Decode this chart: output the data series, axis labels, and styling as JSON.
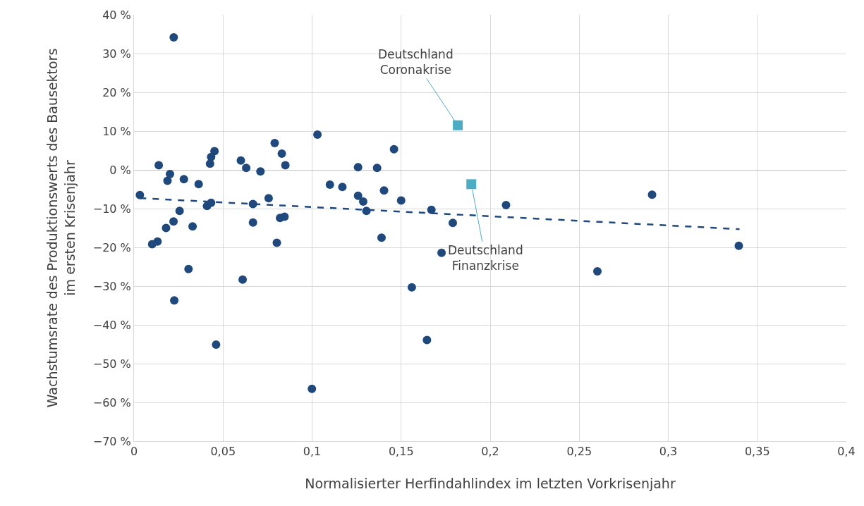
{
  "chart_data": {
    "type": "scatter",
    "xlabel": "Normalisierter Herfindahlindex im letzten Vorkrisenjahr",
    "ylabel": "Wachstumsrate des Produktionswerts des Bausektors\nim ersten Krisenjahr",
    "xlim": [
      0,
      0.4
    ],
    "ylim": [
      -70,
      40
    ],
    "xticks": [
      0,
      {
        "value": 0.05,
        "label": "0,05"
      },
      {
        "value": 0.1,
        "label": "0,1"
      },
      {
        "value": 0.15,
        "label": "0,15"
      },
      {
        "value": 0.2,
        "label": "0,2"
      },
      {
        "value": 0.25,
        "label": "0,25"
      },
      {
        "value": 0.3,
        "label": "0,3"
      },
      {
        "value": 0.35,
        "label": "0,35"
      },
      {
        "value": 0.4,
        "label": "0,4"
      }
    ],
    "yticks": [
      {
        "value": 40,
        "label": "40 %"
      },
      {
        "value": 30,
        "label": "30 %"
      },
      {
        "value": 20,
        "label": "20 %"
      },
      {
        "value": 10,
        "label": "10 %"
      },
      {
        "value": 0,
        "label": "0 %"
      },
      {
        "value": -10,
        "label": "−10 %"
      },
      {
        "value": -20,
        "label": "−20 %"
      },
      {
        "value": -30,
        "label": "−30 %"
      },
      {
        "value": -40,
        "label": "−40 %"
      },
      {
        "value": -50,
        "label": "−50 %"
      },
      {
        "value": -60,
        "label": "−60 %"
      },
      {
        "value": -70,
        "label": "−70 %"
      }
    ],
    "grid": true,
    "series": [
      {
        "type": "scatter",
        "marker": "circle",
        "color": "#1f497d",
        "x": [
          0.0223,
          0.0139,
          0.0202,
          0.0188,
          0.028,
          0.0363,
          0.0033,
          0.0452,
          0.0433,
          0.0427,
          0.06,
          0.063,
          0.071,
          0.079,
          0.083,
          0.085,
          0.103,
          0.11,
          0.117,
          0.041,
          0.0433,
          0.0668,
          0.0756,
          0.0256,
          0.0222,
          0.018,
          0.0329,
          0.0668,
          0.082,
          0.0845,
          0.0102,
          0.0132,
          0.0306,
          0.061,
          0.0226,
          0.0461,
          0.0999,
          0.0802,
          0.1258,
          0.1365,
          0.146,
          0.1258,
          0.1287,
          0.1305,
          0.1404,
          0.15,
          0.167,
          0.179,
          0.139,
          0.1727,
          0.156,
          0.1645,
          0.2089,
          0.2909,
          0.2602,
          0.3396
        ],
        "values": [
          34.2,
          1.2,
          -1.1,
          -2.8,
          -2.4,
          -3.7,
          -6.5,
          4.8,
          3.3,
          1.6,
          2.4,
          0.5,
          -0.4,
          6.9,
          4.2,
          1.2,
          9.1,
          -3.8,
          -4.4,
          -9.3,
          -8.5,
          -8.8,
          -7.3,
          -10.6,
          -13.3,
          -15.0,
          -14.6,
          -13.6,
          -12.4,
          -12.1,
          -19.2,
          -18.5,
          -25.6,
          -28.3,
          -33.7,
          -45.1,
          -56.5,
          -18.8,
          0.7,
          0.5,
          5.3,
          -6.7,
          -8.2,
          -10.6,
          -5.3,
          -7.9,
          -10.3,
          -13.7,
          -17.5,
          -21.4,
          -30.3,
          -43.9,
          -9.1,
          -6.4,
          -26.2,
          -19.6
        ]
      },
      {
        "type": "scatter",
        "marker": "square",
        "color": "#4bacc6",
        "x": [
          0.1818,
          0.1894
        ],
        "values": [
          11.5,
          -3.7
        ]
      },
      {
        "type": "line",
        "marker": "none",
        "line_style": "dashed",
        "color": "#1f497d",
        "x": [
          0.0033,
          0.34
        ],
        "values": [
          -7.3,
          -15.3
        ]
      }
    ],
    "annotations": [
      {
        "text": "Deutschland\nCoronakrise",
        "x": 0.1818,
        "y": 11.5
      },
      {
        "text": "Deutschland\nFinanzkrise",
        "x": 0.1894,
        "y": -3.7
      }
    ]
  }
}
